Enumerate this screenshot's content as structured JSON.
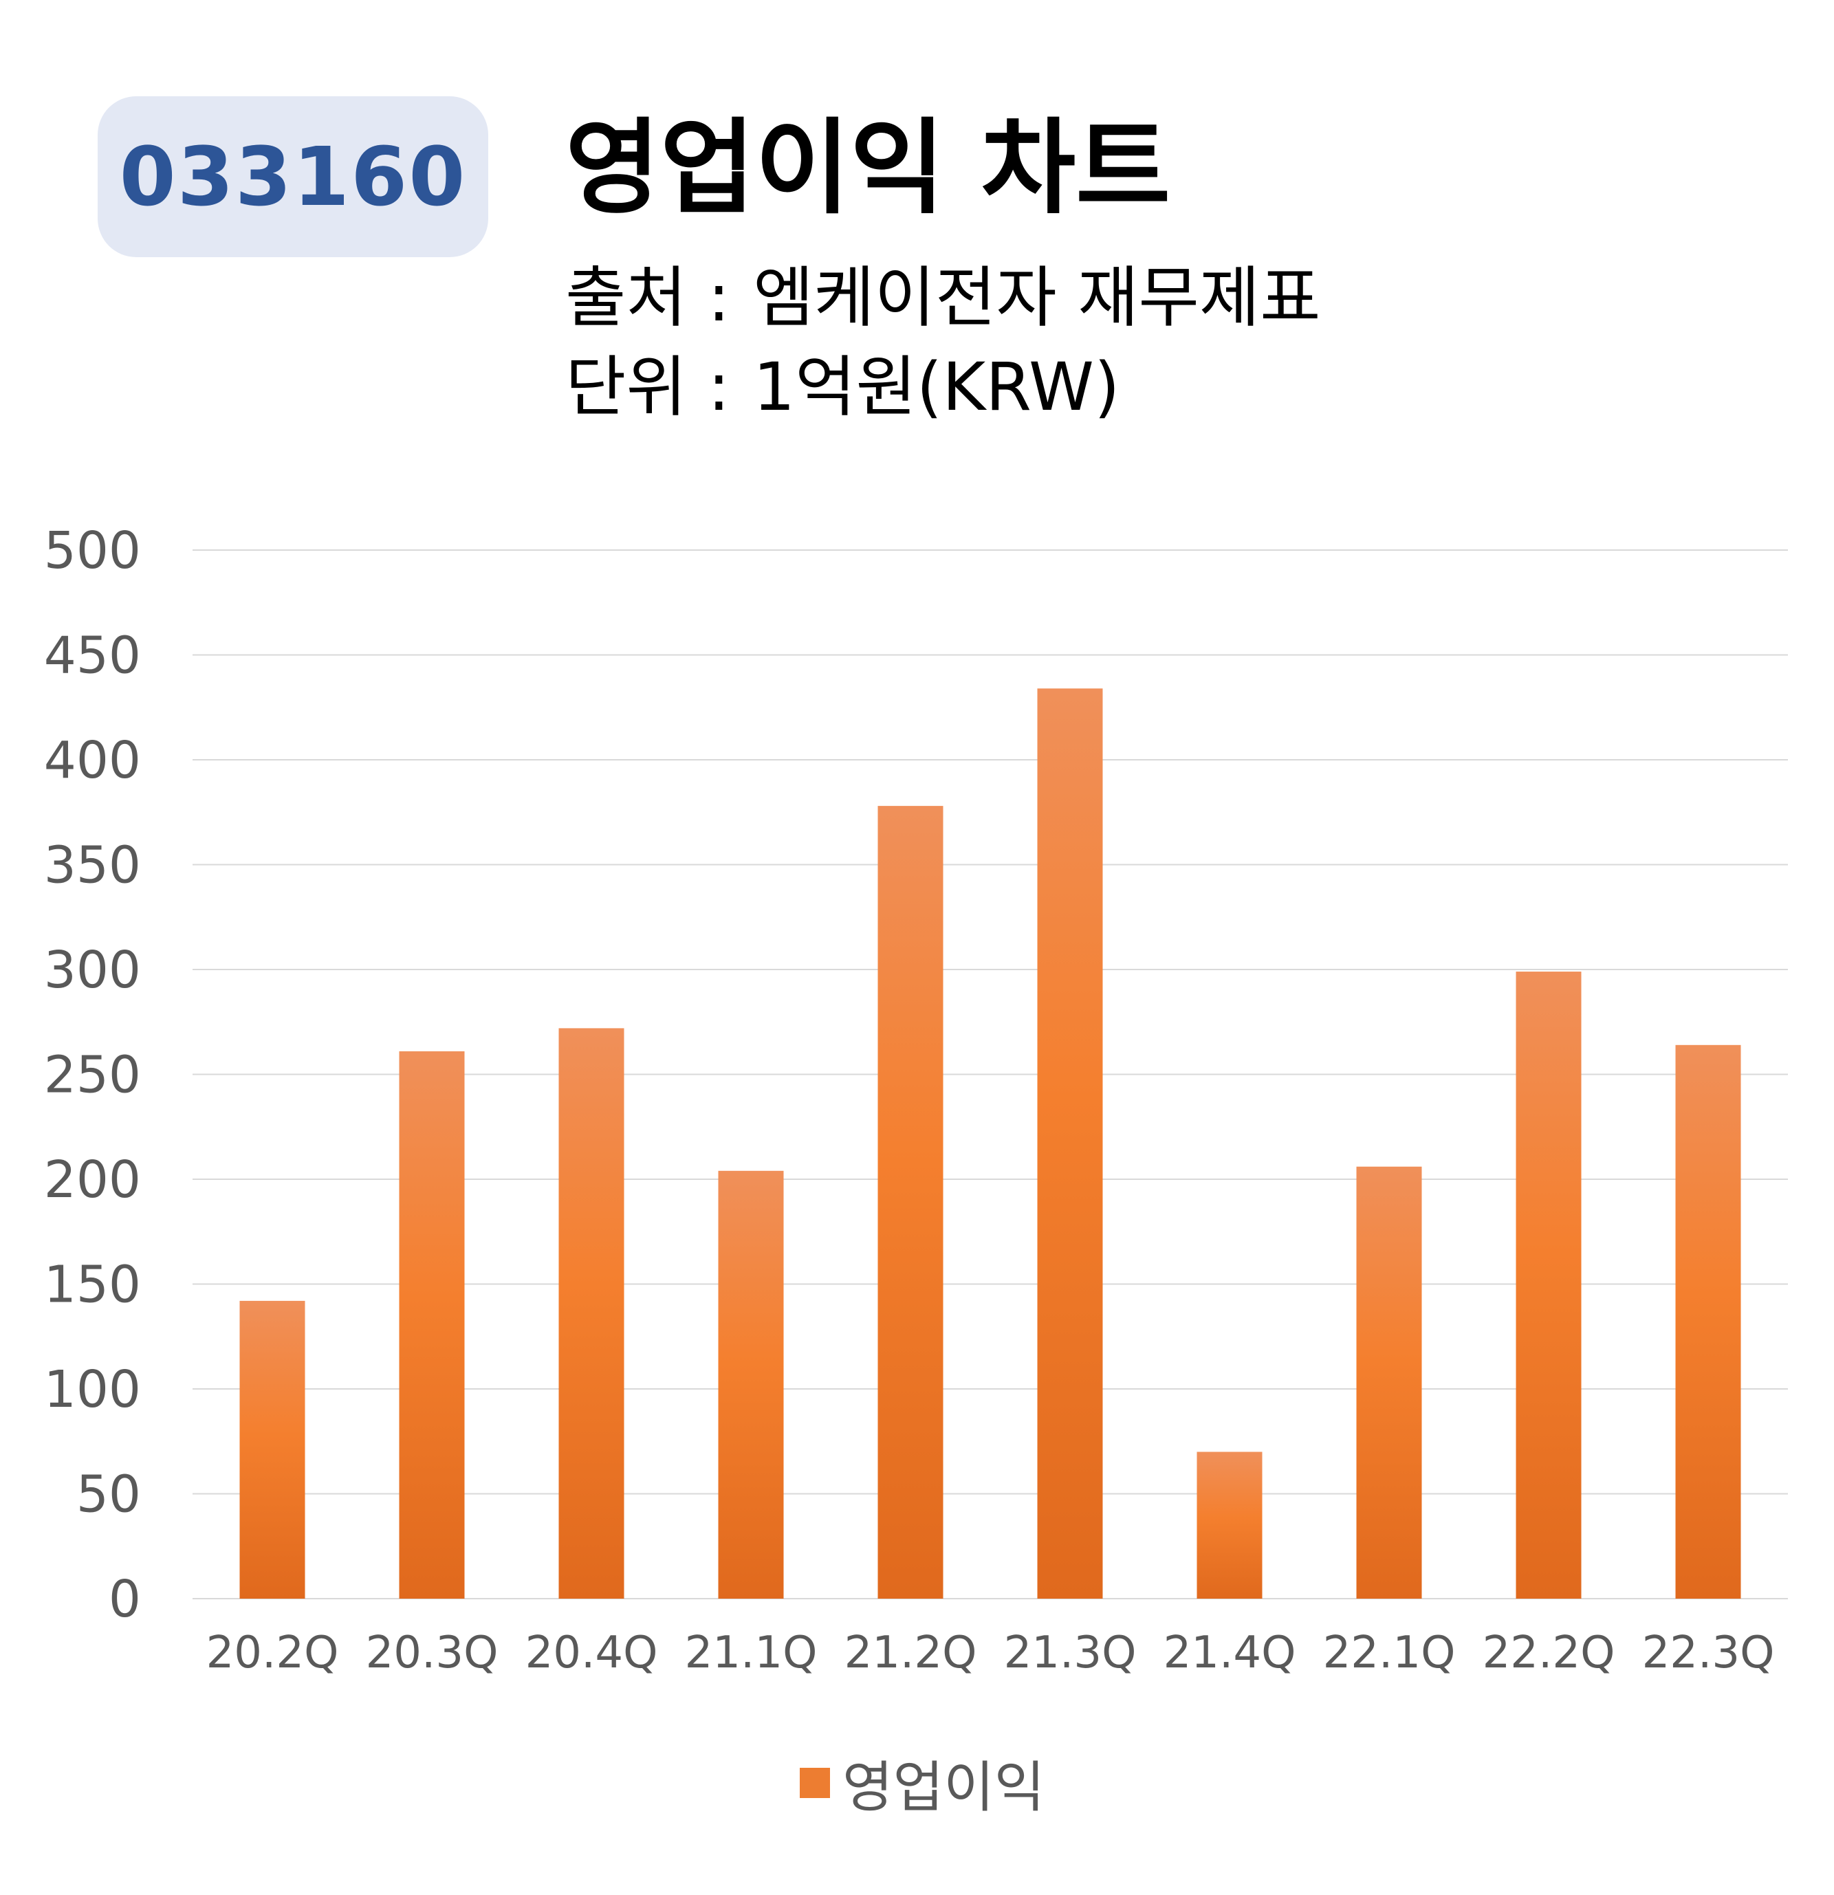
{
  "header": {
    "code": "033160",
    "title": "영업이익 차트",
    "source_label": "출처 :",
    "source_value": "엠케이전자 재무제표",
    "unit_label": "단위 :",
    "unit_value": "1억원(KRW)"
  },
  "chart_data": {
    "type": "bar",
    "categories": [
      "20.2Q",
      "20.3Q",
      "20.4Q",
      "21.1Q",
      "21.2Q",
      "21.3Q",
      "21.4Q",
      "22.1Q",
      "22.2Q",
      "22.3Q"
    ],
    "series": [
      {
        "name": "영업이익",
        "values": [
          142,
          261,
          272,
          204,
          378,
          434,
          70,
          206,
          299,
          264
        ]
      }
    ],
    "ylim": [
      0,
      500
    ],
    "yticks": [
      0,
      50,
      100,
      150,
      200,
      250,
      300,
      350,
      400,
      450,
      500
    ],
    "grid": true,
    "legend": "bottom",
    "colors": {
      "bar": "#ed7d31",
      "bar_light": "#f0905a",
      "bar_dark": "#e0691d",
      "grid": "#d9d9d9",
      "tick_text": "#595959"
    }
  }
}
